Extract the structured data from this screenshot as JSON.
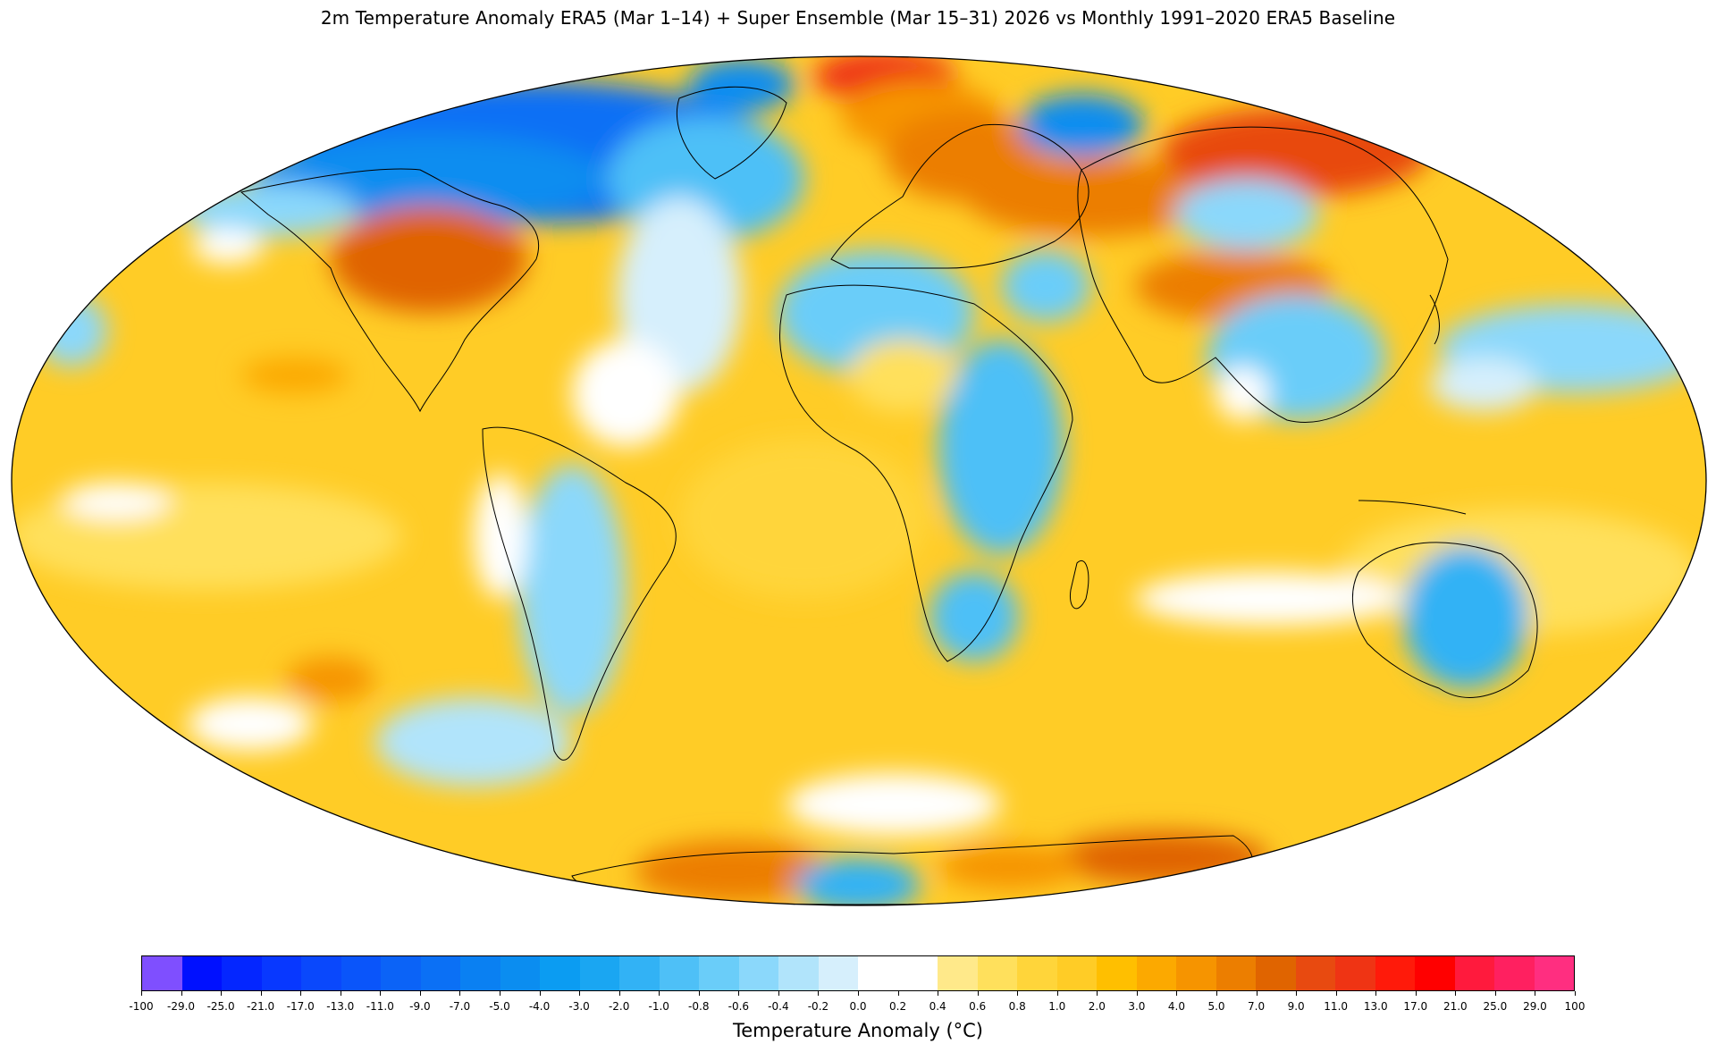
{
  "title": "2m Temperature Anomaly  ERA5 (Mar 1–14) + Super Ensemble (Mar 15–31) 2026  vs Monthly 1991–2020 ERA5 Baseline",
  "colorbar": {
    "label": "Temperature Anomaly (°C)",
    "ticks": [
      "-100",
      "-29.0",
      "-25.0",
      "-21.0",
      "-17.0",
      "-13.0",
      "-11.0",
      "-9.0",
      "-7.0",
      "-5.0",
      "-4.0",
      "-3.0",
      "-2.0",
      "-1.0",
      "-0.8",
      "-0.6",
      "-0.4",
      "-0.2",
      "0.0",
      "0.2",
      "0.4",
      "0.6",
      "0.8",
      "1.0",
      "2.0",
      "3.0",
      "4.0",
      "5.0",
      "7.0",
      "9.0",
      "11.0",
      "13.0",
      "17.0",
      "21.0",
      "25.0",
      "29.0",
      "100"
    ],
    "colors": [
      "#7f4fff",
      "#0010ff",
      "#0426ff",
      "#0838ff",
      "#0a48fc",
      "#0a55fa",
      "#0b63f7",
      "#0b70f5",
      "#0a80f2",
      "#0b8df0",
      "#0b9cf2",
      "#1aa6f2",
      "#32b2f5",
      "#4ec0f7",
      "#6acdf9",
      "#8bd8fb",
      "#b1e4fb",
      "#d6effc",
      "#ffffff",
      "#ffffff",
      "#ffe98a",
      "#ffe05c",
      "#ffd53a",
      "#ffcc26",
      "#ffbf00",
      "#fca900",
      "#f69400",
      "#ec7e00",
      "#e06400",
      "#e84a10",
      "#ef3414",
      "#ff1a0a",
      "#ff0000",
      "#ff1a3d",
      "#ff2060",
      "#ff2e80",
      "#ff40a8"
    ]
  },
  "map": {
    "projection": "Mollweide",
    "ocean_base": "#ffcc26",
    "border_color": "#000000"
  }
}
